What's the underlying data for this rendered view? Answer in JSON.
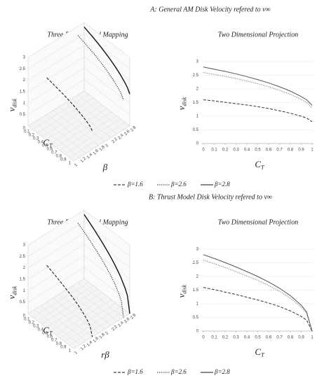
{
  "panel_titles": [
    "A: General AM Disk Velocity refered to v∞",
    "B: Thrust Model Disk Velocity refered to v∞"
  ],
  "chart_data": [
    {
      "type": "surface3d",
      "title": "Three Dimensional Mapping",
      "xlabel": "C",
      "xlabel_sub": "T",
      "ylabel": "β",
      "zlabel": "v",
      "zlabel_sub": "disk",
      "xlim": [
        0,
        1
      ],
      "xticks": [
        0,
        0.1,
        0.2,
        0.3,
        0.4,
        0.5,
        0.6,
        0.7,
        0.8,
        0.9,
        1
      ],
      "ylim": [
        1,
        2.8
      ],
      "yticks": [
        1,
        1.2,
        1.4,
        1.6,
        1.8,
        2,
        2.2,
        2.4,
        2.6,
        2.8
      ],
      "zlim": [
        0,
        3
      ],
      "zticks": [
        0.5,
        1,
        1.5,
        2,
        2.5,
        3
      ]
    },
    {
      "type": "line",
      "title": "Two Dimensional Projection",
      "xlabel": "C",
      "xlabel_sub": "T",
      "ylabel": "v",
      "ylabel_sub": "disk",
      "x": [
        0,
        0.1,
        0.2,
        0.3,
        0.4,
        0.5,
        0.6,
        0.7,
        0.8,
        0.9,
        0.95,
        1
      ],
      "xlim": [
        0,
        1
      ],
      "xticks": [
        0,
        0.1,
        0.2,
        0.3,
        0.4,
        0.5,
        0.6,
        0.7,
        0.8,
        0.9,
        1
      ],
      "ylim": [
        0,
        3
      ],
      "yticks": [
        0,
        0.5,
        1,
        1.5,
        2,
        2.5,
        3
      ],
      "grid": true,
      "series": [
        {
          "name": "β=1.6",
          "beta": 1.6,
          "color": "#333333",
          "dash": "dashed",
          "values": [
            1.6,
            1.56,
            1.51,
            1.46,
            1.41,
            1.35,
            1.28,
            1.2,
            1.11,
            1.0,
            0.93,
            0.8
          ]
        },
        {
          "name": "β=2.6",
          "beta": 2.6,
          "color": "#777777",
          "dash": "dotted",
          "values": [
            2.6,
            2.53,
            2.46,
            2.38,
            2.29,
            2.19,
            2.08,
            1.95,
            1.8,
            1.62,
            1.5,
            1.3
          ]
        },
        {
          "name": "β=2.8",
          "beta": 2.8,
          "color": "#555555",
          "dash": "solid",
          "values": [
            2.8,
            2.72,
            2.64,
            2.55,
            2.45,
            2.34,
            2.22,
            2.08,
            1.92,
            1.72,
            1.6,
            1.4
          ]
        }
      ]
    },
    {
      "type": "surface3d",
      "title": "Three Dimensional Mapping",
      "xlabel": "C",
      "xlabel_sub": "T",
      "ylabel": "rβ",
      "zlabel": "v",
      "zlabel_sub": "disk",
      "xlim": [
        0,
        1
      ],
      "xticks": [
        0,
        0.1,
        0.2,
        0.3,
        0.4,
        0.5,
        0.6,
        0.7,
        0.8,
        0.9,
        1
      ],
      "ylim": [
        1,
        2.8
      ],
      "yticks": [
        1,
        1.2,
        1.4,
        1.6,
        1.8,
        2,
        2.2,
        2.4,
        2.6,
        2.8
      ],
      "zlim": [
        0,
        3
      ],
      "zticks": [
        0.5,
        1,
        1.5,
        2,
        2.5,
        3
      ]
    },
    {
      "type": "line",
      "title": "Two Dimensional Projection",
      "xlabel": "C",
      "xlabel_sub": "T",
      "ylabel": "v",
      "ylabel_sub": "disk",
      "x": [
        0,
        0.1,
        0.2,
        0.3,
        0.4,
        0.5,
        0.6,
        0.7,
        0.8,
        0.9,
        0.95,
        1
      ],
      "xlim": [
        0,
        1
      ],
      "xticks": [
        0,
        0.1,
        0.2,
        0.3,
        0.4,
        0.5,
        0.6,
        0.7,
        0.8,
        0.9,
        1
      ],
      "ylim": [
        0,
        3
      ],
      "yticks": [
        0,
        0.5,
        1,
        1.5,
        2,
        2.5,
        3
      ],
      "grid": true,
      "series": [
        {
          "name": "β=1.6",
          "beta": 1.6,
          "color": "#333333",
          "dash": "dashed",
          "values": [
            1.6,
            1.52,
            1.43,
            1.34,
            1.24,
            1.14,
            1.03,
            0.9,
            0.74,
            0.54,
            0.4,
            0
          ]
        },
        {
          "name": "β=2.6",
          "beta": 2.6,
          "color": "#777777",
          "dash": "dotted",
          "values": [
            2.6,
            2.47,
            2.33,
            2.18,
            2.02,
            1.86,
            1.67,
            1.46,
            1.21,
            0.88,
            0.65,
            0
          ]
        },
        {
          "name": "β=2.8",
          "beta": 2.8,
          "color": "#555555",
          "dash": "solid",
          "values": [
            2.8,
            2.66,
            2.51,
            2.35,
            2.18,
            2.0,
            1.8,
            1.57,
            1.3,
            0.95,
            0.7,
            0
          ]
        }
      ]
    }
  ]
}
